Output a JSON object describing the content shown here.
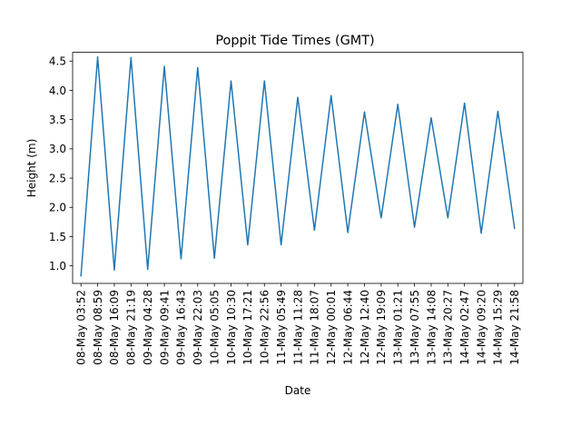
{
  "chart_data": {
    "type": "line",
    "title": "Poppit Tide Times (GMT)",
    "xlabel": "Date",
    "ylabel": "Height (m)",
    "ylim": [
      0.7,
      4.65
    ],
    "yticks": [
      "1.0",
      "1.5",
      "2.0",
      "2.5",
      "3.0",
      "3.5",
      "4.0",
      "4.5"
    ],
    "grid": false,
    "legend": "none",
    "line_color": "#1f77b4",
    "x": [
      "08-May 03:52",
      "08-May 08:59",
      "08-May 16:09",
      "08-May 21:19",
      "09-May 04:28",
      "09-May 09:41",
      "09-May 16:43",
      "09-May 22:03",
      "10-May 05:05",
      "10-May 10:30",
      "10-May 17:21",
      "10-May 22:56",
      "11-May 05:49",
      "11-May 11:28",
      "11-May 18:07",
      "12-May 00:01",
      "12-May 06:44",
      "12-May 12:40",
      "12-May 19:09",
      "13-May 01:21",
      "13-May 07:55",
      "13-May 14:08",
      "13-May 20:27",
      "14-May 02:47",
      "14-May 09:20",
      "14-May 15:29",
      "14-May 21:58"
    ],
    "series": [
      {
        "values": [
          0.83,
          4.57,
          0.93,
          4.56,
          0.94,
          4.41,
          1.12,
          4.39,
          1.13,
          4.16,
          1.36,
          4.16,
          1.36,
          3.88,
          1.61,
          3.91,
          1.57,
          3.63,
          1.82,
          3.76,
          1.66,
          3.53,
          1.82,
          3.78,
          1.56,
          3.64,
          1.64
        ]
      }
    ]
  }
}
